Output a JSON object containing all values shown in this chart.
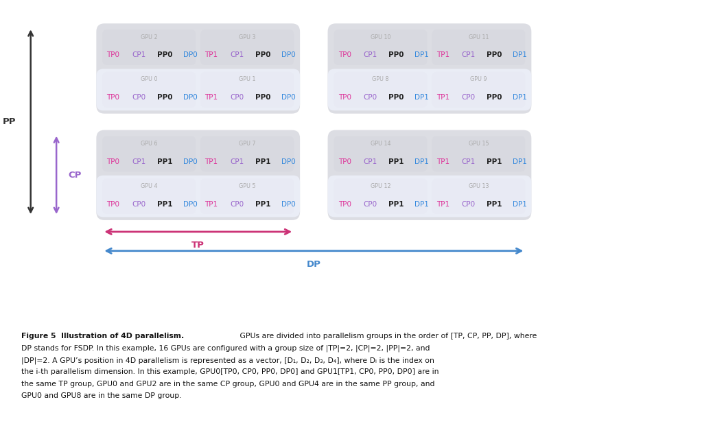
{
  "background_color": "#ffffff",
  "gpu_label_color": "#aaaaaa",
  "tp_color": "#dd3399",
  "cp_color": "#9966cc",
  "pp_color": "#222222",
  "dp_color": "#3388dd",
  "box_bg_outer": "#dcdde3",
  "box_bg_inner": "#eaedf6",
  "box_individual_outer": "#d8d9e0",
  "box_individual_inner": "#e8eaf4",
  "arrow_tp_color": "#cc3377",
  "arrow_dp_color": "#4488cc",
  "arrow_pp_color": "#333333",
  "arrow_cp_color": "#9966cc",
  "gpus": [
    {
      "id": 2,
      "row": 0,
      "col": 0,
      "outer": true,
      "labels": [
        "TP0",
        "CP1",
        "PP0",
        "DP0"
      ]
    },
    {
      "id": 3,
      "row": 0,
      "col": 1,
      "outer": true,
      "labels": [
        "TP1",
        "CP1",
        "PP0",
        "DP0"
      ]
    },
    {
      "id": 0,
      "row": 1,
      "col": 0,
      "outer": false,
      "labels": [
        "TP0",
        "CP0",
        "PP0",
        "DP0"
      ]
    },
    {
      "id": 1,
      "row": 1,
      "col": 1,
      "outer": false,
      "labels": [
        "TP1",
        "CP0",
        "PP0",
        "DP0"
      ]
    },
    {
      "id": 6,
      "row": 2,
      "col": 0,
      "outer": true,
      "labels": [
        "TP0",
        "CP1",
        "PP1",
        "DP0"
      ]
    },
    {
      "id": 7,
      "row": 2,
      "col": 1,
      "outer": true,
      "labels": [
        "TP1",
        "CP1",
        "PP1",
        "DP0"
      ]
    },
    {
      "id": 4,
      "row": 3,
      "col": 0,
      "outer": false,
      "labels": [
        "TP0",
        "CP0",
        "PP1",
        "DP0"
      ]
    },
    {
      "id": 5,
      "row": 3,
      "col": 1,
      "outer": false,
      "labels": [
        "TP1",
        "CP0",
        "PP1",
        "DP0"
      ]
    },
    {
      "id": 10,
      "row": 0,
      "col": 2,
      "outer": true,
      "labels": [
        "TP0",
        "CP1",
        "PP0",
        "DP1"
      ]
    },
    {
      "id": 11,
      "row": 0,
      "col": 3,
      "outer": true,
      "labels": [
        "TP1",
        "CP1",
        "PP0",
        "DP1"
      ]
    },
    {
      "id": 8,
      "row": 1,
      "col": 2,
      "outer": false,
      "labels": [
        "TP0",
        "CP0",
        "PP0",
        "DP1"
      ]
    },
    {
      "id": 9,
      "row": 1,
      "col": 3,
      "outer": false,
      "labels": [
        "TP1",
        "CP0",
        "PP0",
        "DP1"
      ]
    },
    {
      "id": 14,
      "row": 2,
      "col": 2,
      "outer": true,
      "labels": [
        "TP0",
        "CP1",
        "PP1",
        "DP1"
      ]
    },
    {
      "id": 15,
      "row": 2,
      "col": 3,
      "outer": true,
      "labels": [
        "TP1",
        "CP1",
        "PP1",
        "DP1"
      ]
    },
    {
      "id": 12,
      "row": 3,
      "col": 2,
      "outer": false,
      "labels": [
        "TP0",
        "CP0",
        "PP1",
        "DP1"
      ]
    },
    {
      "id": 13,
      "row": 3,
      "col": 3,
      "outer": false,
      "labels": [
        "TP1",
        "CP0",
        "PP1",
        "DP1"
      ]
    }
  ],
  "caption_bold": "Figure 5  Illustration of 4D parallelism.",
  "caption_lines": [
    " GPUs are divided into parallelism groups in the order of [TP, CP, PP, DP], where",
    "DP stands for FSDP. In this example, 16 GPUs are configured with a group size of |TP|=2, |CP|=2, |PP|=2, and",
    "|DP|=2. A GPU’s position in 4D parallelism is represented as a vector, [D₁, D₂, D₃, D₄], where Dᵢ is the index on",
    "the i-th parallelism dimension. In this example, GPU0[TP0, CP0, PP0, DP0] and GPU1[TP1, CP0, PP0, DP0] are in",
    "the same TP group, GPU0 and GPU2 are in the same CP group, GPU0 and GPU4 are in the same PP group, and",
    "GPU0 and GPU8 are in the same DP group."
  ]
}
